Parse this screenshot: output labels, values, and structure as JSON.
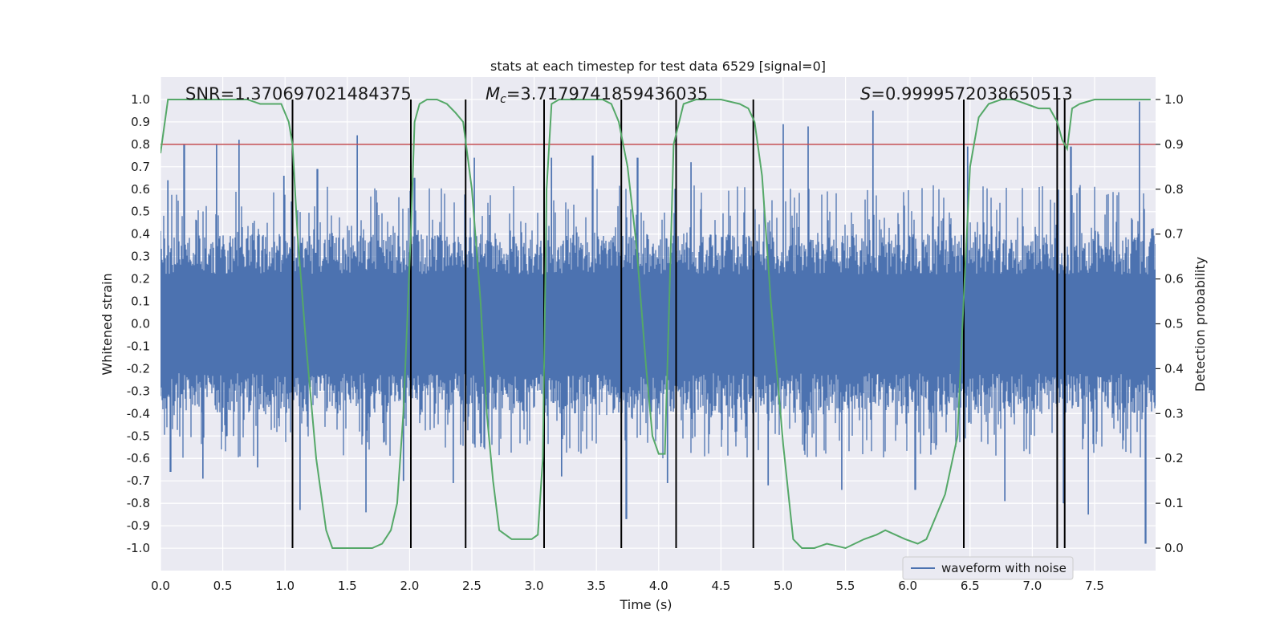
{
  "chart_data": {
    "type": "line",
    "title": "stats at each timestep for test data 6529 [signal=0]",
    "xlabel": "Time (s)",
    "ylabel": "Whitened strain",
    "ylabel_right": "Detection probability",
    "xlim": [
      0.0,
      7.99
    ],
    "ylim": [
      -1.1,
      1.1
    ],
    "ylim_right": [
      -0.05,
      1.05
    ],
    "x_ticks": [
      "0.0",
      "0.5",
      "1.0",
      "1.5",
      "2.0",
      "2.5",
      "3.0",
      "3.5",
      "4.0",
      "4.5",
      "5.0",
      "5.5",
      "6.0",
      "6.5",
      "7.0",
      "7.5"
    ],
    "y_ticks": [
      "1.0",
      "0.9",
      "0.8",
      "0.7",
      "0.6",
      "0.5",
      "0.4",
      "0.3",
      "0.2",
      "0.1",
      "0.0",
      "-0.1",
      "-0.2",
      "-0.3",
      "-0.4",
      "-0.5",
      "-0.6",
      "-0.7",
      "-0.8",
      "-0.9",
      "-1.0"
    ],
    "y_ticks_right": [
      "1.0",
      "0.9",
      "0.8",
      "0.7",
      "0.6",
      "0.5",
      "0.4",
      "0.3",
      "0.2",
      "0.1",
      "0.0"
    ],
    "grid": true,
    "legend_position": "lower-right",
    "annotations": {
      "snr": "SNR=1.370697021484375",
      "mc_symbol": "M",
      "mc_sub": "c",
      "mc_value": "=3.7179741859436035",
      "s_symbol": "S",
      "s_value": "=0.9999572038650513"
    },
    "series": [
      {
        "name": "waveform with noise",
        "color": "#4c72b0",
        "axis": "left",
        "render": "dense-noise",
        "core_amplitude": 0.4,
        "peaks": [
          [
            0.06,
            0.64
          ],
          [
            0.19,
            0.8
          ],
          [
            0.45,
            0.8
          ],
          [
            0.63,
            0.82
          ],
          [
            0.99,
            0.66
          ],
          [
            1.26,
            0.69
          ],
          [
            1.58,
            0.84
          ],
          [
            2.04,
            0.65
          ],
          [
            2.52,
            0.74
          ],
          [
            3.14,
            0.74
          ],
          [
            3.47,
            0.75
          ],
          [
            3.83,
            0.74
          ],
          [
            4.26,
            0.72
          ],
          [
            5.0,
            0.89
          ],
          [
            5.2,
            0.88
          ],
          [
            5.72,
            0.95
          ],
          [
            6.48,
            0.79
          ],
          [
            7.31,
            0.79
          ],
          [
            7.86,
            0.99
          ]
        ],
        "troughs": [
          [
            0.08,
            -0.66
          ],
          [
            0.34,
            -0.69
          ],
          [
            0.78,
            -0.64
          ],
          [
            1.12,
            -0.83
          ],
          [
            1.65,
            -0.84
          ],
          [
            1.95,
            -0.7
          ],
          [
            2.35,
            -0.71
          ],
          [
            3.22,
            -0.68
          ],
          [
            3.74,
            -0.87
          ],
          [
            4.07,
            -0.71
          ],
          [
            4.88,
            -0.72
          ],
          [
            5.47,
            -0.74
          ],
          [
            6.06,
            -0.74
          ],
          [
            6.78,
            -0.79
          ],
          [
            7.25,
            -0.8
          ],
          [
            7.45,
            -0.85
          ],
          [
            7.91,
            -0.98
          ]
        ]
      },
      {
        "name": "detection probability",
        "color": "#55a868",
        "axis": "right",
        "x": [
          0.0,
          0.06,
          0.15,
          0.3,
          0.5,
          0.7,
          0.8,
          0.9,
          0.97,
          1.03,
          1.06,
          1.1,
          1.17,
          1.25,
          1.33,
          1.38,
          1.45,
          1.6,
          1.7,
          1.78,
          1.85,
          1.9,
          1.95,
          1.98,
          2.01,
          2.04,
          2.08,
          2.14,
          2.22,
          2.3,
          2.37,
          2.43,
          2.5,
          2.57,
          2.62,
          2.67,
          2.72,
          2.82,
          2.92,
          2.98,
          3.03,
          3.07,
          3.1,
          3.14,
          3.2,
          3.3,
          3.45,
          3.55,
          3.62,
          3.68,
          3.75,
          3.82,
          3.9,
          3.95,
          4.0,
          4.05,
          4.08,
          4.12,
          4.2,
          4.3,
          4.5,
          4.65,
          4.72,
          4.77,
          4.83,
          4.9,
          5.0,
          5.08,
          5.15,
          5.25,
          5.35,
          5.5,
          5.65,
          5.75,
          5.82,
          5.9,
          5.98,
          6.08,
          6.15,
          6.3,
          6.4,
          6.44,
          6.5,
          6.57,
          6.65,
          6.75,
          6.85,
          6.95,
          7.05,
          7.14,
          7.2,
          7.24,
          7.28,
          7.32,
          7.38,
          7.5,
          7.7,
          7.95
        ],
        "values": [
          0.88,
          1.0,
          1.0,
          1.0,
          1.0,
          1.0,
          0.99,
          0.99,
          0.99,
          0.95,
          0.9,
          0.7,
          0.45,
          0.2,
          0.04,
          0.0,
          0.0,
          0.0,
          0.0,
          0.01,
          0.04,
          0.1,
          0.3,
          0.5,
          0.7,
          0.95,
          0.99,
          1.0,
          1.0,
          0.99,
          0.97,
          0.95,
          0.8,
          0.55,
          0.3,
          0.15,
          0.04,
          0.02,
          0.02,
          0.02,
          0.03,
          0.2,
          0.8,
          0.99,
          1.0,
          1.0,
          1.0,
          1.0,
          0.99,
          0.95,
          0.85,
          0.68,
          0.4,
          0.25,
          0.21,
          0.21,
          0.5,
          0.9,
          0.99,
          1.0,
          1.0,
          0.99,
          0.98,
          0.95,
          0.83,
          0.55,
          0.23,
          0.02,
          0.0,
          0.0,
          0.01,
          0.0,
          0.02,
          0.03,
          0.04,
          0.03,
          0.02,
          0.01,
          0.02,
          0.12,
          0.25,
          0.5,
          0.85,
          0.96,
          0.99,
          1.0,
          1.0,
          0.99,
          0.98,
          0.98,
          0.95,
          0.91,
          0.89,
          0.98,
          0.99,
          1.0,
          1.0,
          1.0
        ]
      }
    ],
    "threshold_line": {
      "value": 0.9,
      "axis": "right",
      "color": "#c44e52"
    },
    "event_lines": {
      "axis": "right",
      "from": 0.0,
      "to": 1.0,
      "color": "#000000",
      "x": [
        1.06,
        2.01,
        2.45,
        3.08,
        3.7,
        4.14,
        4.76,
        6.45,
        7.2,
        7.26
      ]
    }
  }
}
